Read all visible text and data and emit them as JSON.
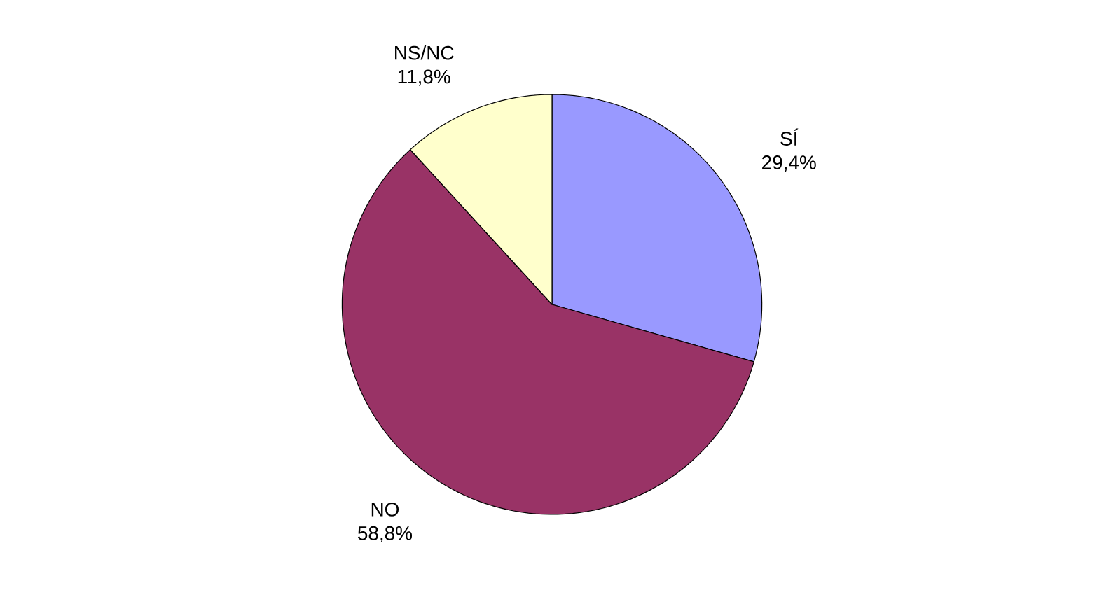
{
  "chart_data": {
    "type": "pie",
    "categories": [
      "SÍ",
      "NO",
      "NS/NC"
    ],
    "values": [
      29.4,
      58.8,
      11.8
    ],
    "value_labels": [
      "29,4%",
      "58,8%",
      "11,8%"
    ],
    "colors": [
      "#9999ff",
      "#993366",
      "#ffffcc"
    ]
  }
}
